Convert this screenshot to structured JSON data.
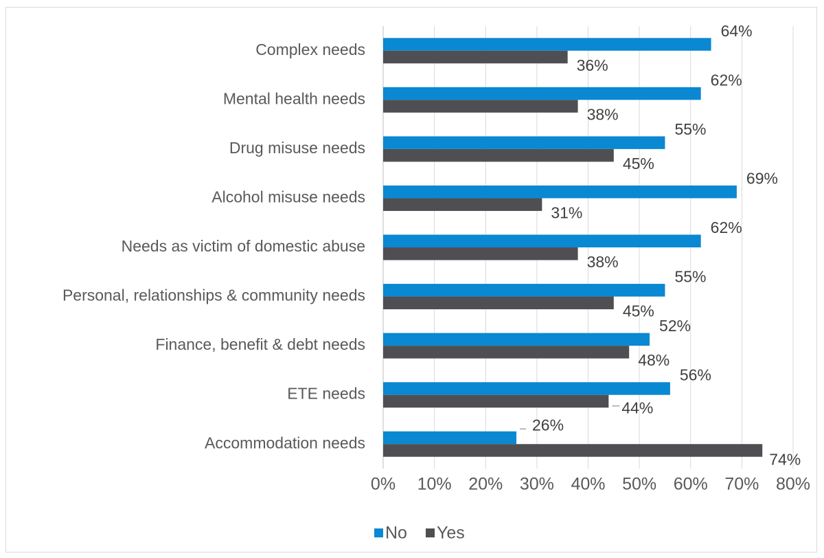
{
  "chart_data": {
    "type": "bar",
    "orientation": "horizontal",
    "categories": [
      "Complex needs",
      "Mental health needs",
      "Drug misuse needs",
      "Alcohol misuse needs",
      "Needs as victim of domestic abuse",
      "Personal, relationships & community needs",
      "Finance, benefit & debt needs",
      "ETE needs",
      "Accommodation needs"
    ],
    "series": [
      {
        "name": "No",
        "color": "#0a88d2",
        "values": [
          64,
          62,
          55,
          69,
          62,
          55,
          52,
          56,
          26
        ],
        "labels": [
          "64%",
          "62%",
          "55%",
          "69%",
          "62%",
          "55%",
          "52%",
          "56%",
          "26%"
        ]
      },
      {
        "name": "Yes",
        "color": "#4f4f53",
        "values": [
          36,
          38,
          45,
          31,
          38,
          45,
          48,
          44,
          74
        ],
        "labels": [
          "36%",
          "38%",
          "45%",
          "31%",
          "38%",
          "45%",
          "48%",
          "44%",
          "74%"
        ]
      }
    ],
    "xlim": [
      0,
      80
    ],
    "xticks": [
      "0%",
      "10%",
      "20%",
      "30%",
      "40%",
      "50%",
      "60%",
      "70%",
      "80%"
    ],
    "grid": true,
    "legend": "bottom"
  }
}
